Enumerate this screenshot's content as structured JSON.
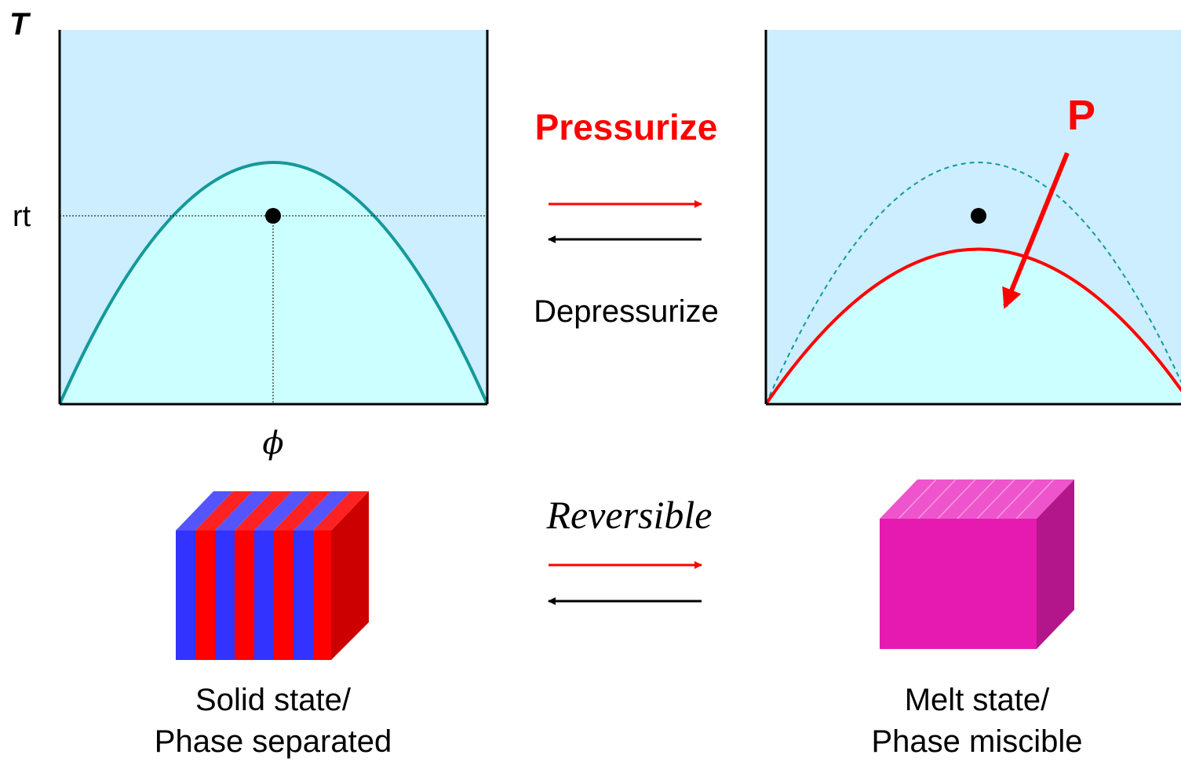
{
  "left_diagram": {
    "y_axis_label": "T",
    "rt_label": "rt",
    "x_axis_label": "ϕ",
    "curve_color": "#14999a"
  },
  "right_diagram": {
    "pressure_label": "P",
    "curve_color": "#ff0000",
    "original_curve_color": "#14999a"
  },
  "process": {
    "pressurize_label": "Pressurize",
    "depressurize_label": "Depressurize",
    "reversible_label": "Reversible"
  },
  "left_state": {
    "line1": "Solid state/",
    "line2": "Phase separated"
  },
  "right_state": {
    "line1": "Melt state/",
    "line2": "Phase miscible"
  },
  "colors": {
    "plot_background": "#cceeff",
    "under_curve": "#ccffff",
    "accent_red": "#ff0000",
    "stripe_blue": "#3333ff",
    "cube_magenta": "#e619b0"
  }
}
